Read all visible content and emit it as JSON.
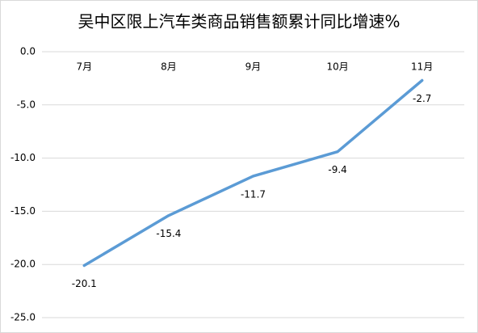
{
  "chart_data": {
    "type": "line",
    "title": "吴中区限上汽车类商品销售额累计同比增速%",
    "categories": [
      "7月",
      "8月",
      "9月",
      "10月",
      "11月"
    ],
    "values": [
      -20.1,
      -15.4,
      -11.7,
      -9.4,
      -2.7
    ],
    "color": "#5b9bd5",
    "ylim": [
      -25,
      0
    ],
    "yticks": [
      {
        "value": 0,
        "label": "0.0"
      },
      {
        "value": -5,
        "label": "-5.0"
      },
      {
        "value": -10,
        "label": "-10.0"
      },
      {
        "value": -15,
        "label": "-15.0"
      },
      {
        "value": -20,
        "label": "-20.0"
      },
      {
        "value": -25,
        "label": "-25.0"
      }
    ],
    "grid": true
  }
}
